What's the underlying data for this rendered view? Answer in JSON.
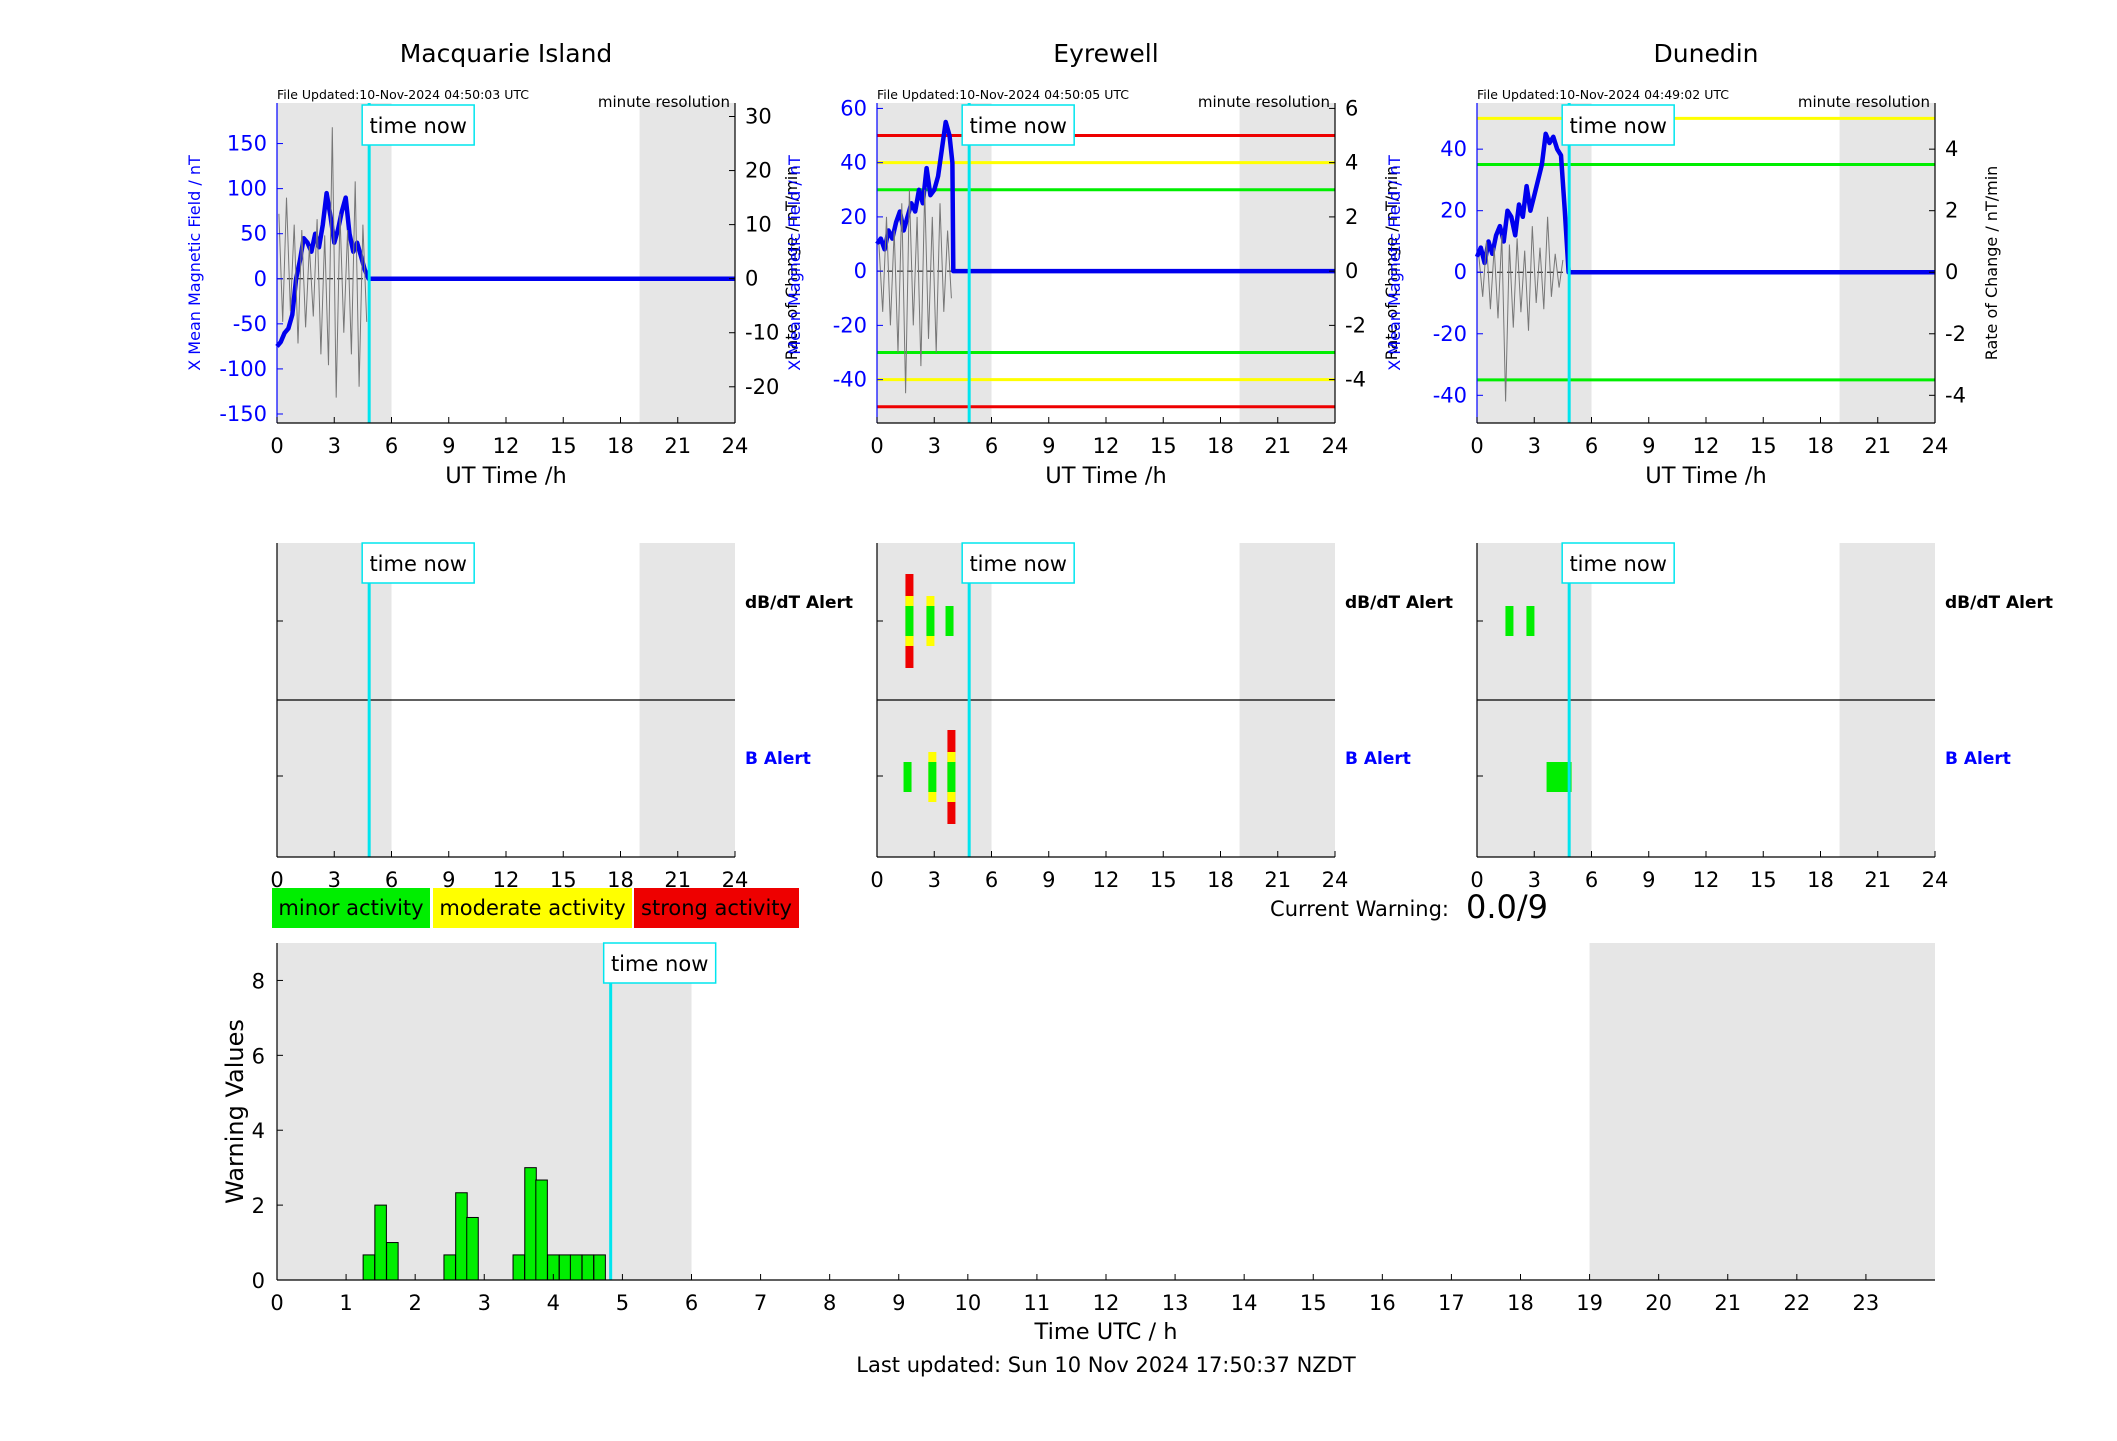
{
  "footer": {
    "last_updated": "Last updated: Sun 10 Nov 2024 17:50:37 NZDT"
  },
  "current_warning": {
    "label": "Current Warning:",
    "value": "0.0/9"
  },
  "time_now_label": "time now",
  "now_hour": 4.83,
  "colors": {
    "shade": "#e6e6e6",
    "now_line": "#00e5ee",
    "x_field": "#0000ee",
    "rate": "#777777",
    "minor": "#00ee00",
    "moderate": "#ffff00",
    "strong": "#ee0000",
    "axis_blue": "#0000ff"
  },
  "legend": [
    {
      "key": "minor",
      "label": "minor activity"
    },
    {
      "key": "moderate",
      "label": "moderate activity"
    },
    {
      "key": "strong",
      "label": "strong activity"
    }
  ],
  "alert_labels": {
    "dbdt": "dB/dT Alert",
    "b": "B Alert"
  },
  "chart_data": [
    {
      "type": "line",
      "title": "Macquarie Island",
      "file_updated": "File Updated:10-Nov-2024 04:50:03 UTC",
      "resolution": "minute resolution",
      "xlabel": "UT Time /h",
      "ylabel_left": "X Mean Magnetic Field / nT",
      "ylabel_right": "Rate of Change / nT/min",
      "xlim": [
        0,
        24
      ],
      "xticks": [
        0,
        3,
        6,
        9,
        12,
        15,
        18,
        21,
        24
      ],
      "ylim_left": [
        -160,
        195
      ],
      "yticks_left": [
        -150,
        -100,
        -50,
        0,
        50,
        100,
        150
      ],
      "ylim_right": [
        -26.7,
        32.5
      ],
      "yticks_right": [
        -20,
        -10,
        0,
        10,
        20,
        30
      ],
      "shaded_hours": [
        [
          0,
          6
        ],
        [
          19,
          24
        ]
      ],
      "thresholds": [],
      "series": [
        {
          "axis": "left",
          "x": [
            0,
            0.2,
            0.4,
            0.6,
            0.8,
            1.0,
            1.2,
            1.4,
            1.6,
            1.8,
            2.0,
            2.2,
            2.4,
            2.6,
            2.8,
            3.0,
            3.2,
            3.4,
            3.6,
            3.8,
            4.0,
            4.2,
            4.4,
            4.6,
            4.8,
            5,
            24
          ],
          "y": [
            -75,
            -70,
            -60,
            -55,
            -40,
            0,
            20,
            45,
            40,
            30,
            50,
            35,
            60,
            95,
            70,
            40,
            55,
            75,
            90,
            50,
            30,
            40,
            25,
            10,
            0,
            0,
            0
          ]
        },
        {
          "axis": "right",
          "x": [
            0.1,
            0.3,
            0.5,
            0.7,
            0.9,
            1.1,
            1.3,
            1.5,
            1.7,
            1.9,
            2.1,
            2.3,
            2.5,
            2.7,
            2.9,
            3.1,
            3.3,
            3.5,
            3.7,
            3.9,
            4.1,
            4.3,
            4.5,
            4.7
          ],
          "y": [
            12,
            -8,
            15,
            -6,
            10,
            -12,
            9,
            -9,
            6,
            -7,
            11,
            -14,
            8,
            -16,
            28,
            -22,
            12,
            -10,
            9,
            -14,
            18,
            -20,
            10,
            -8
          ]
        }
      ],
      "alerts": {
        "dbdt": [],
        "b": []
      }
    },
    {
      "type": "line",
      "title": "Eyrewell",
      "file_updated": "File Updated:10-Nov-2024 04:50:05 UTC",
      "resolution": "minute resolution",
      "xlabel": "UT Time /h",
      "ylabel_left": "X Mean Magnetic Field / nT",
      "ylabel_right": "Rate of Change / nT/min",
      "xlim": [
        0,
        24
      ],
      "xticks": [
        0,
        3,
        6,
        9,
        12,
        15,
        18,
        21,
        24
      ],
      "ylim_left": [
        -56,
        62
      ],
      "yticks_left": [
        -40,
        -20,
        0,
        20,
        40,
        60
      ],
      "ylim_right": [
        -5.6,
        6.2
      ],
      "yticks_right": [
        -4,
        -2,
        0,
        2,
        4,
        6
      ],
      "shaded_hours": [
        [
          0,
          6
        ],
        [
          19,
          24
        ]
      ],
      "thresholds": [
        {
          "level": "strong",
          "value": 50
        },
        {
          "level": "moderate",
          "value": 40
        },
        {
          "level": "minor",
          "value": 30
        },
        {
          "level": "minor",
          "value": -30
        },
        {
          "level": "moderate",
          "value": -40
        },
        {
          "level": "strong",
          "value": -50
        }
      ],
      "series": [
        {
          "axis": "left",
          "x": [
            0,
            0.2,
            0.4,
            0.6,
            0.8,
            1.0,
            1.2,
            1.4,
            1.6,
            1.8,
            2.0,
            2.2,
            2.4,
            2.6,
            2.8,
            3.0,
            3.2,
            3.4,
            3.6,
            3.8,
            3.95,
            4.0,
            5,
            24
          ],
          "y": [
            10,
            12,
            8,
            15,
            12,
            18,
            22,
            15,
            20,
            25,
            22,
            30,
            25,
            38,
            28,
            30,
            35,
            45,
            55,
            50,
            40,
            0,
            0,
            0
          ]
        },
        {
          "axis": "right",
          "x": [
            0.1,
            0.3,
            0.5,
            0.7,
            0.9,
            1.1,
            1.3,
            1.5,
            1.7,
            1.9,
            2.1,
            2.3,
            2.5,
            2.7,
            2.9,
            3.1,
            3.3,
            3.5,
            3.7,
            3.9
          ],
          "y": [
            1,
            -1.5,
            2,
            -2,
            1.5,
            -3,
            2.5,
            -4.5,
            3,
            -2,
            2,
            -3.5,
            3,
            -2.5,
            2,
            -3,
            2.5,
            -1.5,
            1.5,
            -1
          ]
        }
      ],
      "alerts": {
        "dbdt": [
          {
            "hour": 1.7,
            "levels": [
              "minor",
              "moderate",
              "strong"
            ]
          },
          {
            "hour": 2.8,
            "levels": [
              "minor",
              "moderate"
            ]
          },
          {
            "hour": 3.8,
            "levels": [
              "minor"
            ]
          }
        ],
        "b": [
          {
            "hour": 1.6,
            "levels": [
              "minor"
            ]
          },
          {
            "hour": 2.9,
            "levels": [
              "minor",
              "moderate"
            ]
          },
          {
            "hour": 3.9,
            "levels": [
              "minor",
              "moderate",
              "strong"
            ]
          }
        ]
      }
    },
    {
      "type": "line",
      "title": "Dunedin",
      "file_updated": "File Updated:10-Nov-2024 04:49:02 UTC",
      "resolution": "minute resolution",
      "xlabel": "UT Time /h",
      "ylabel_left": "X Mean Magnetic Field / nT",
      "ylabel_right": "Rate of Change / nT/min",
      "xlim": [
        0,
        24
      ],
      "xticks": [
        0,
        3,
        6,
        9,
        12,
        15,
        18,
        21,
        24
      ],
      "ylim_left": [
        -49,
        55
      ],
      "yticks_left": [
        -40,
        -20,
        0,
        20,
        40
      ],
      "ylim_right": [
        -4.9,
        5.5
      ],
      "yticks_right": [
        -4,
        -2,
        0,
        2,
        4
      ],
      "shaded_hours": [
        [
          0,
          6
        ],
        [
          19,
          24
        ]
      ],
      "thresholds": [
        {
          "level": "moderate",
          "value": 50
        },
        {
          "level": "minor",
          "value": 35
        },
        {
          "level": "minor",
          "value": -35
        }
      ],
      "series": [
        {
          "axis": "left",
          "x": [
            0,
            0.2,
            0.4,
            0.6,
            0.8,
            1.0,
            1.2,
            1.4,
            1.6,
            1.8,
            2.0,
            2.2,
            2.4,
            2.6,
            2.8,
            3.0,
            3.2,
            3.4,
            3.6,
            3.8,
            4.0,
            4.2,
            4.4,
            4.6,
            4.8,
            5,
            24
          ],
          "y": [
            5,
            8,
            3,
            10,
            6,
            12,
            15,
            10,
            20,
            18,
            12,
            22,
            18,
            28,
            20,
            25,
            30,
            35,
            45,
            42,
            44,
            40,
            38,
            20,
            0,
            0,
            0
          ]
        },
        {
          "axis": "right",
          "x": [
            0.1,
            0.3,
            0.5,
            0.7,
            0.9,
            1.1,
            1.3,
            1.5,
            1.7,
            1.9,
            2.1,
            2.3,
            2.5,
            2.7,
            2.9,
            3.1,
            3.3,
            3.5,
            3.7,
            3.9,
            4.1,
            4.3,
            4.5
          ],
          "y": [
            0.5,
            -0.8,
            1,
            -1.2,
            0.8,
            -1.5,
            1.2,
            -4.2,
            0.9,
            -1.8,
            1.1,
            -1.3,
            0.7,
            -1.9,
            1.5,
            -1,
            0.8,
            -1.2,
            1.8,
            -0.8,
            0.6,
            -0.5,
            0.4
          ]
        }
      ],
      "alerts": {
        "dbdt": [
          {
            "hour": 1.7,
            "levels": [
              "minor"
            ]
          },
          {
            "hour": 2.8,
            "levels": [
              "minor"
            ]
          }
        ],
        "b": [
          {
            "hour": 4.3,
            "levels": [
              "minor"
            ]
          }
        ]
      }
    },
    {
      "type": "bar",
      "title": "",
      "xlabel": "Time UTC / h",
      "ylabel": "Warning Values",
      "xlim": [
        0,
        24
      ],
      "xticks": [
        0,
        1,
        2,
        3,
        4,
        5,
        6,
        7,
        8,
        9,
        10,
        11,
        12,
        13,
        14,
        15,
        16,
        17,
        18,
        19,
        20,
        21,
        22,
        23
      ],
      "ylim": [
        0,
        9
      ],
      "yticks": [
        0,
        2,
        4,
        6,
        8
      ],
      "shaded_hours": [
        [
          0,
          6
        ],
        [
          19,
          24
        ]
      ],
      "bar_width_hours": 0.1667,
      "x": [
        1.33,
        1.5,
        1.67,
        2.5,
        2.67,
        2.83,
        3.5,
        3.67,
        3.83,
        4.0,
        4.17,
        4.33,
        4.5,
        4.67
      ],
      "values": [
        0.67,
        2.0,
        1.0,
        0.67,
        2.33,
        1.67,
        0.67,
        3.0,
        2.67,
        0.67,
        0.67,
        0.67,
        0.67,
        0.67
      ]
    }
  ]
}
